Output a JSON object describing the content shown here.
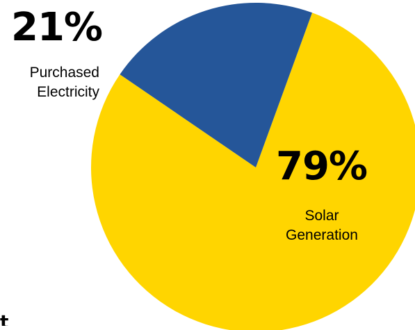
{
  "chart_data": {
    "type": "pie",
    "slices": [
      {
        "percent_label": "79%",
        "value": 79,
        "category": [
          "Solar",
          "Generation"
        ],
        "color": "#FFD500"
      },
      {
        "percent_label": "21%",
        "value": 21,
        "category": [
          "Purchased",
          "Electricity"
        ],
        "color": "#255699"
      }
    ],
    "start_angle_deg": 20
  },
  "fragments": {
    "cut_off_letter": "t"
  }
}
